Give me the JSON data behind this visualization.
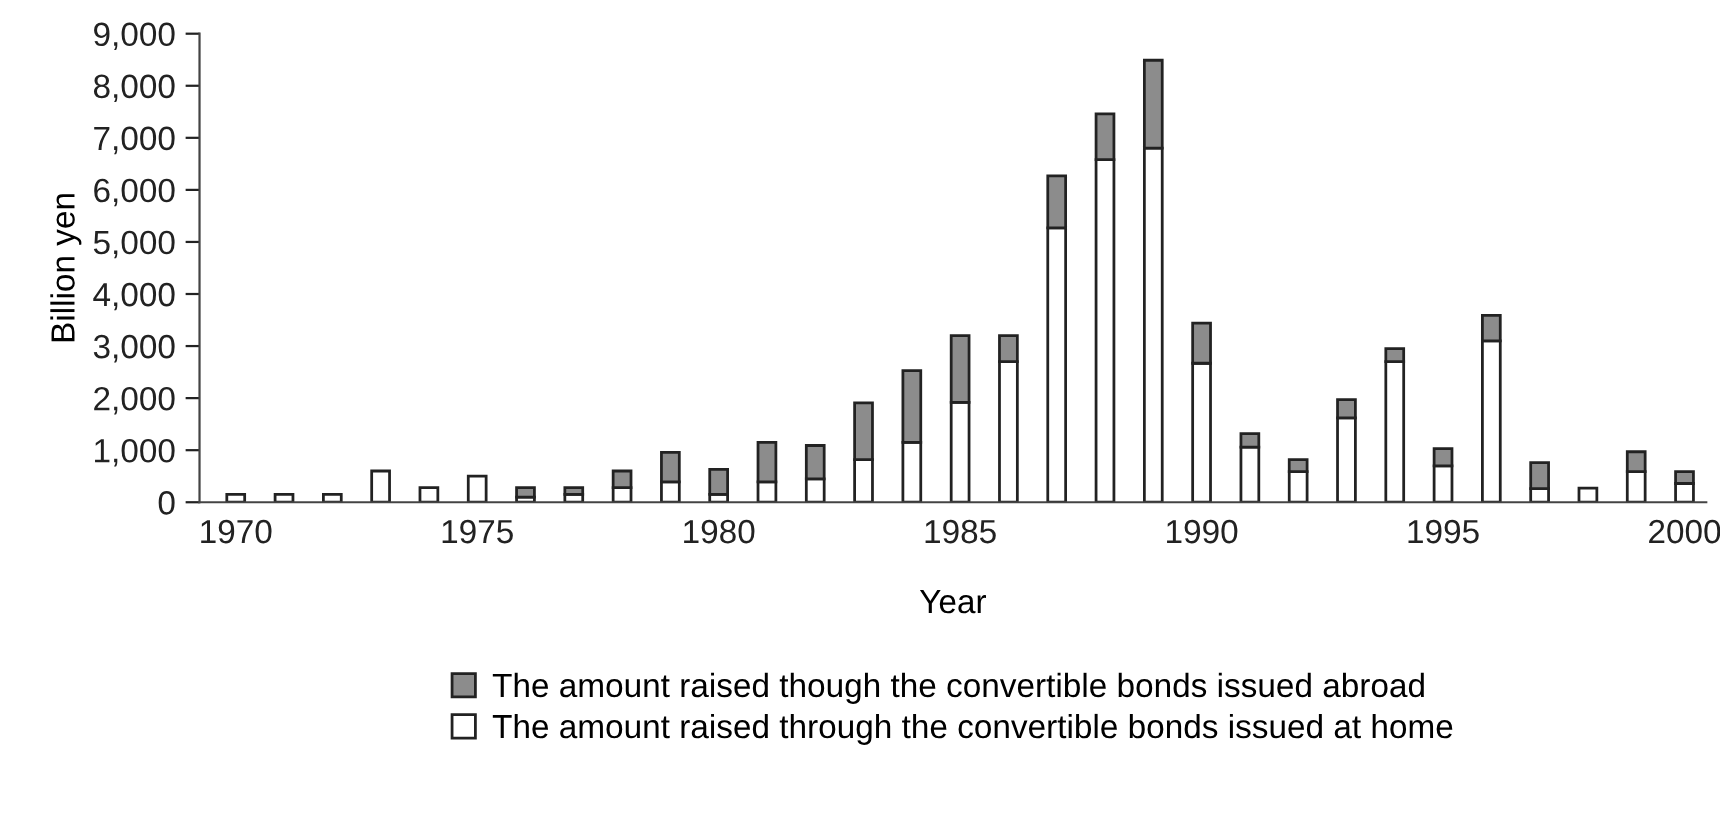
{
  "chart_data": {
    "type": "bar",
    "stacked": true,
    "xlabel": "Year",
    "ylabel": "Billion yen",
    "x": [
      1970,
      1971,
      1972,
      1973,
      1974,
      1975,
      1976,
      1977,
      1978,
      1979,
      1980,
      1981,
      1982,
      1983,
      1984,
      1985,
      1986,
      1987,
      1988,
      1989,
      1990,
      1991,
      1992,
      1993,
      1994,
      1995,
      1996,
      1997,
      1998,
      1999,
      2000
    ],
    "series": [
      {
        "name": "The amount raised through the convertible bonds issued at home",
        "color": "#ffffff",
        "values": [
          150,
          150,
          150,
          600,
          280,
          500,
          100,
          150,
          280,
          390,
          150,
          390,
          450,
          820,
          1150,
          1920,
          2700,
          5270,
          6580,
          6800,
          2670,
          1060,
          590,
          1620,
          2700,
          700,
          3100,
          260,
          270,
          590,
          360
        ]
      },
      {
        "name": "The amount raised though the convertible bonds issued abroad",
        "color": "#8c8c8c",
        "values": [
          null,
          null,
          null,
          null,
          null,
          null,
          180,
          130,
          320,
          570,
          480,
          760,
          640,
          1090,
          1380,
          1280,
          500,
          1000,
          880,
          1690,
          770,
          260,
          230,
          350,
          250,
          330,
          490,
          500,
          null,
          380,
          230
        ]
      }
    ],
    "xlim": [
      1969.25,
      2000.45
    ],
    "xticks": [
      1970,
      1975,
      1980,
      1985,
      1990,
      1995,
      2000
    ],
    "ylim": [
      0,
      9000
    ],
    "yticks": [
      {
        "value": 0,
        "label": "0"
      },
      {
        "value": 1000,
        "label": "1,000"
      },
      {
        "value": 2000,
        "label": "2,000"
      },
      {
        "value": 3000,
        "label": "3,000"
      },
      {
        "value": 4000,
        "label": "4,000"
      },
      {
        "value": 5000,
        "label": "5,000"
      },
      {
        "value": 6000,
        "label": "6,000"
      },
      {
        "value": 7000,
        "label": "7,000"
      },
      {
        "value": 8000,
        "label": "8,000"
      },
      {
        "value": 9000,
        "label": "9,000"
      }
    ],
    "grid": false,
    "legend": "bottom"
  }
}
